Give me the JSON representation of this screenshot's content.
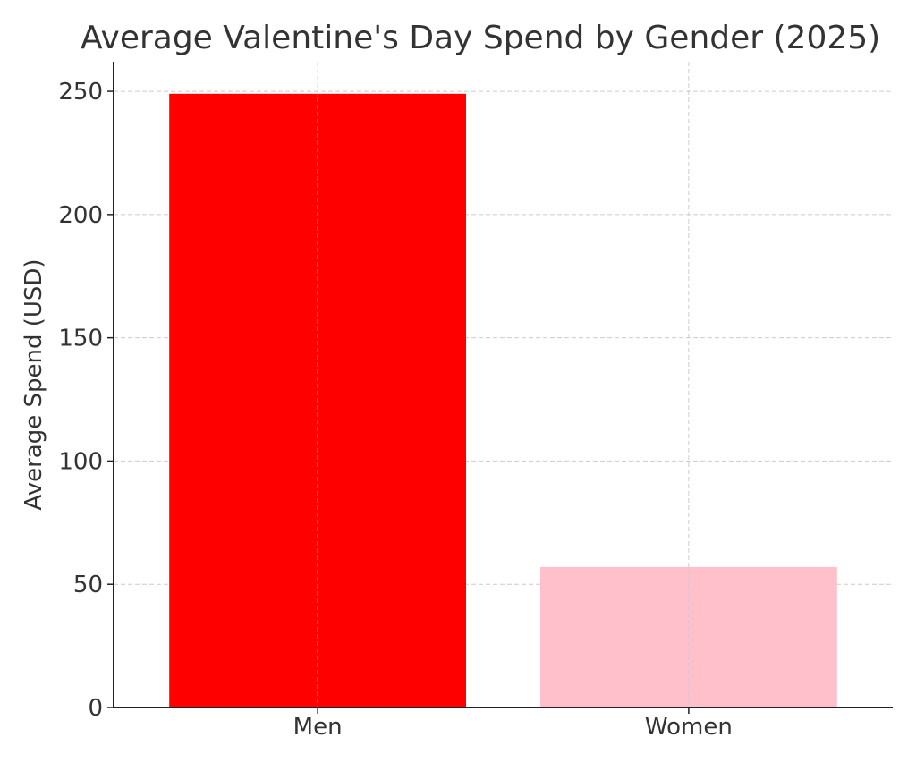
{
  "chart_data": {
    "type": "bar",
    "title": "Average Valentine's Day Spend by Gender (2025)",
    "xlabel": "",
    "ylabel": "Average Spend (USD)",
    "categories": [
      "Men",
      "Women"
    ],
    "values": [
      249,
      57
    ],
    "colors": [
      "#ff0000",
      "#ffc0cb"
    ],
    "ylim": [
      0,
      262
    ],
    "yticks": [
      0,
      50,
      100,
      150,
      200,
      250
    ],
    "grid": true,
    "legend": "none"
  }
}
